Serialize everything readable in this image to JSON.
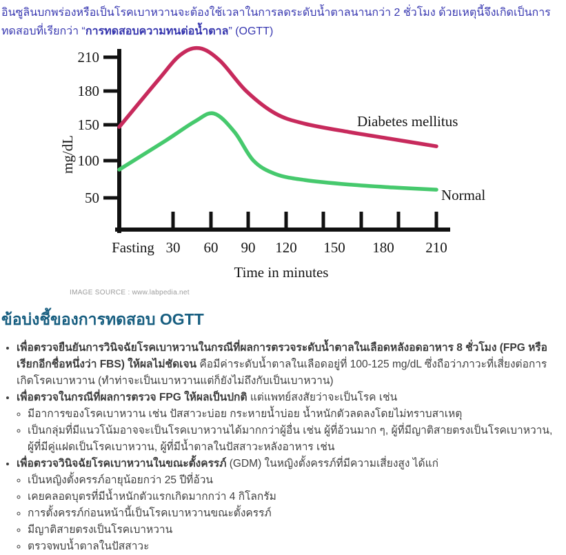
{
  "intro": {
    "pre": "อินซูลินบกพร่องหรือเป็นโรคเบาหวานจะต้องใช้เวลาในการลดระดับน้ำตาลนานกว่า 2 ชั่วโมง ด้วยเหตุนี้จึงเกิดเป็นการทดสอบที่เรียกว่า “",
    "bold": "การทดสอบความทนต่อน้ำตาล",
    "post": "” (OGTT)"
  },
  "chart_caption": "IMAGE SOURCE : www.labpedia.net",
  "section": {
    "heading": "ข้อบ่งชี้ของการทดสอบ OGTT",
    "bullets": [
      {
        "segments": [
          {
            "b": true,
            "t": "เพื่อตรวจยืนยันการวินิจฉัยโรคเบาหวานในกรณีที่ผลการตรวจระดับน้ำตาลในเลือดหลังอดอาหาร 8 ชั่วโมง (FPG หรือเรียกอีกชื่อหนึ่งว่า FBS) ให้ผลไม่ชัดเจน"
          },
          {
            "b": false,
            "t": " คือมีค่าระดับน้ำตาลในเลือดอยู่ที่ 100-125 mg/dL ซึ่งถือว่าภาวะที่เสี่ยงต่อการเกิดโรคเบาหวาน (ทำท่าจะเป็นเบาหวานแต่ก็ยังไม่ถึงกับเป็นเบาหวาน)"
          }
        ],
        "children": []
      },
      {
        "segments": [
          {
            "b": true,
            "t": "เพื่อตรวจในกรณีที่ผลการตรวจ FPG ให้ผลเป็นปกติ"
          },
          {
            "b": false,
            "t": " แต่แพทย์สงสัยว่าจะเป็นโรค เช่น"
          }
        ],
        "children": [
          {
            "segments": [
              {
                "b": false,
                "t": "มีอาการของโรคเบาหวาน เช่น ปัสสาวะบ่อย กระหายน้ำบ่อย น้ำหนักตัวลดลงโดยไม่ทราบสาเหตุ"
              }
            ]
          },
          {
            "segments": [
              {
                "b": false,
                "t": "เป็นกลุ่มที่มีแนวโน้มอาจจะเป็นโรคเบาหวานได้มากกว่าผู้อื่น เช่น ผู้ที่อ้วนมาก ๆ, ผู้ที่มีญาติสายตรงเป็นโรคเบาหวาน, ผู้ที่มีคู่แฝดเป็นโรคเบาหวาน, ผู้ที่มีน้ำตาลในปัสสาวะหลังอาหาร เช่น"
              }
            ]
          }
        ]
      },
      {
        "segments": [
          {
            "b": true,
            "t": "เพื่อตรวจวินิจฉัยโรคเบาหวานในขณะตั้งครรภ์"
          },
          {
            "b": false,
            "t": " (GDM) ในหญิงตั้งครรภ์ที่มีความเสี่ยงสูง ได้แก่"
          }
        ],
        "children": [
          {
            "segments": [
              {
                "b": false,
                "t": "เป็นหญิงตั้งครรภ์อายุน้อยกว่า 25 ปีที่อ้วน"
              }
            ]
          },
          {
            "segments": [
              {
                "b": false,
                "t": "เคยคลอดบุตรที่มีน้ำหนักตัวแรกเกิดมากกว่า 4 กิโลกรัม"
              }
            ]
          },
          {
            "segments": [
              {
                "b": false,
                "t": "การตั้งครรภ์ก่อนหน้านี้เป็นโรคเบาหวานขณะตั้งครรภ์"
              }
            ]
          },
          {
            "segments": [
              {
                "b": false,
                "t": "มีญาติสายตรงเป็นโรคเบาหวาน"
              }
            ]
          },
          {
            "segments": [
              {
                "b": false,
                "t": "ตรวจพบน้ำตาลในปัสสาวะ"
              }
            ]
          }
        ]
      }
    ]
  },
  "chart_data": {
    "type": "line",
    "title": "",
    "xlabel": "Time in minutes",
    "ylabel": "mg/dL",
    "x_tick_labels": [
      "Fasting",
      "30",
      "60",
      "90",
      "120",
      "150",
      "180",
      "210"
    ],
    "y_tick_labels": [
      210,
      180,
      150,
      100,
      50
    ],
    "x_unit": "minutes",
    "legend_position": "right-of-curves",
    "grid": false,
    "series": [
      {
        "name": "Diabetes mellitus",
        "color": "#c72a5c",
        "points": [
          [
            0,
            147
          ],
          [
            20,
            190
          ],
          [
            35,
            212
          ],
          [
            48,
            218
          ],
          [
            62,
            207
          ],
          [
            80,
            180
          ],
          [
            100,
            160
          ],
          [
            120,
            151
          ],
          [
            150,
            140
          ],
          [
            180,
            130
          ],
          [
            210,
            120
          ]
        ]
      },
      {
        "name": "Normal",
        "color": "#46c96d",
        "points": [
          [
            0,
            88
          ],
          [
            25,
            128
          ],
          [
            45,
            153
          ],
          [
            58,
            160
          ],
          [
            72,
            140
          ],
          [
            85,
            100
          ],
          [
            100,
            82
          ],
          [
            120,
            74
          ],
          [
            150,
            68
          ],
          [
            180,
            64
          ],
          [
            210,
            61
          ]
        ]
      }
    ]
  }
}
